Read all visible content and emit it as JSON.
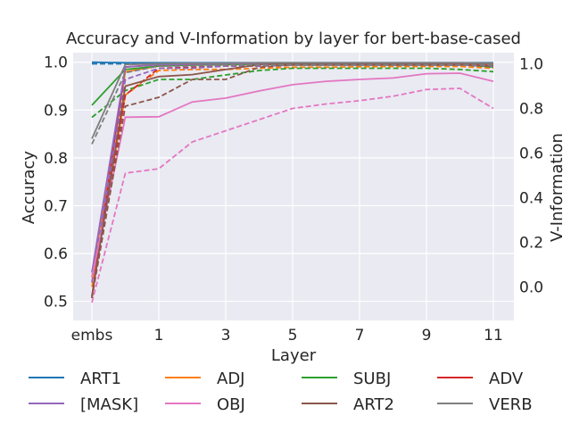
{
  "chart_data": {
    "type": "line",
    "title": "Accuracy and V-Information by layer for bert-base-cased",
    "xlabel": "Layer",
    "ylabel_left": "Accuracy",
    "ylabel_right": "V-Information",
    "x": [
      "embs",
      0,
      1,
      2,
      3,
      4,
      5,
      6,
      7,
      8,
      9,
      10,
      11
    ],
    "x_tick_labels": [
      "embs",
      "1",
      "3",
      "5",
      "7",
      "9",
      "11"
    ],
    "x_tick_positions": [
      "embs",
      1,
      3,
      5,
      7,
      9,
      11
    ],
    "ylim_left": [
      0.46,
      1.02
    ],
    "y_ticks_left": [
      "0.5",
      "0.6",
      "0.7",
      "0.8",
      "0.9",
      "1.0"
    ],
    "ylim_right": [
      -0.15,
      1.05
    ],
    "y_ticks_right": [
      "0.0",
      "0.2",
      "0.4",
      "0.6",
      "0.8",
      "1.0"
    ],
    "grid": true,
    "legend_position": "bottom",
    "solid_style": "Accuracy",
    "dashed_style": "V-Information",
    "series": [
      {
        "name": "ART1",
        "color": "#1f77b4",
        "accuracy": [
          1.0,
          0.999,
          0.999,
          0.999,
          0.999,
          0.999,
          0.999,
          0.999,
          0.999,
          0.999,
          0.999,
          0.999,
          0.999
        ],
        "vinfo": [
          1.0,
          1.0,
          1.0,
          1.0,
          1.0,
          1.0,
          1.0,
          1.0,
          1.0,
          1.0,
          1.0,
          1.0,
          1.0
        ]
      },
      {
        "name": "ADJ",
        "color": "#ff7f0e",
        "accuracy": [
          0.55,
          0.98,
          0.992,
          0.995,
          0.996,
          0.997,
          0.997,
          0.997,
          0.997,
          0.997,
          0.997,
          0.996,
          0.995
        ],
        "vinfo": [
          0.0,
          0.86,
          0.97,
          0.975,
          0.975,
          0.98,
          0.985,
          0.985,
          0.987,
          0.988,
          0.988,
          0.988,
          0.98
        ]
      },
      {
        "name": "SUBJ",
        "color": "#2ca02c",
        "accuracy": [
          0.91,
          0.985,
          0.992,
          0.994,
          0.995,
          0.996,
          0.996,
          0.996,
          0.996,
          0.996,
          0.996,
          0.995,
          0.99
        ],
        "vinfo": [
          0.76,
          0.88,
          0.93,
          0.93,
          0.95,
          0.97,
          0.98,
          0.98,
          0.98,
          0.98,
          0.98,
          0.975,
          0.965
        ]
      },
      {
        "name": "ADV",
        "color": "#d62728",
        "accuracy": [
          0.51,
          0.99,
          0.995,
          0.996,
          0.997,
          0.998,
          0.998,
          0.998,
          0.998,
          0.998,
          0.998,
          0.997,
          0.996
        ],
        "vinfo": [
          -0.05,
          0.86,
          0.98,
          0.985,
          0.99,
          0.99,
          0.995,
          0.995,
          0.995,
          0.995,
          0.995,
          0.995,
          0.99
        ]
      },
      {
        "name": "[MASK]",
        "color": "#9467bd",
        "accuracy": [
          0.56,
          0.99,
          0.995,
          0.996,
          0.997,
          0.998,
          0.998,
          0.998,
          0.998,
          0.998,
          0.998,
          0.998,
          0.997
        ],
        "vinfo": [
          0.02,
          0.93,
          0.98,
          0.98,
          0.99,
          0.99,
          0.995,
          0.995,
          0.995,
          0.995,
          0.995,
          0.995,
          0.99
        ]
      },
      {
        "name": "OBJ",
        "color": "#e377c2",
        "accuracy": [
          0.55,
          0.885,
          0.886,
          0.917,
          0.925,
          0.94,
          0.953,
          0.96,
          0.964,
          0.967,
          0.976,
          0.977,
          0.96
        ],
        "vinfo": [
          -0.07,
          0.51,
          0.53,
          0.65,
          0.7,
          0.75,
          0.8,
          0.82,
          0.835,
          0.855,
          0.885,
          0.89,
          0.8
        ]
      },
      {
        "name": "ART2",
        "color": "#8c564b",
        "accuracy": [
          0.51,
          0.95,
          0.97,
          0.974,
          0.985,
          0.995,
          0.997,
          0.998,
          0.998,
          0.998,
          0.998,
          0.998,
          0.997
        ],
        "vinfo": [
          -0.05,
          0.81,
          0.85,
          0.93,
          0.93,
          0.985,
          0.995,
          0.995,
          0.995,
          0.995,
          0.995,
          0.995,
          0.99
        ]
      },
      {
        "name": "VERB",
        "color": "#7f7f7f",
        "accuracy": [
          0.84,
          0.995,
          0.997,
          0.998,
          0.998,
          0.999,
          0.999,
          0.999,
          0.999,
          0.999,
          0.999,
          0.999,
          0.998
        ],
        "vinfo": [
          0.64,
          0.96,
          0.99,
          0.99,
          0.995,
          0.995,
          0.995,
          0.995,
          0.995,
          0.995,
          0.995,
          0.995,
          0.995
        ]
      }
    ]
  }
}
